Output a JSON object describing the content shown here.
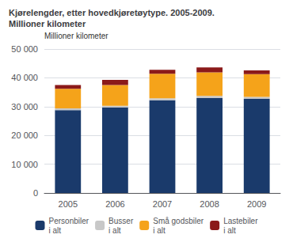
{
  "chart_data": {
    "type": "bar",
    "stacked": true,
    "title": "Kjørelengder, etter hovedkjøretøytype. 2005-2009.\nMillioner kilometer",
    "ylabel": "Millioner kilometer",
    "categories": [
      "2005",
      "2006",
      "2007",
      "2008",
      "2009"
    ],
    "series": [
      {
        "name": "Personbiler\ni alt",
        "color": "#1a3a6b",
        "values": [
          28800,
          29700,
          32200,
          33000,
          32700
        ]
      },
      {
        "name": "Busser\ni alt",
        "color": "#c8c8c8",
        "values": [
          600,
          600,
          700,
          700,
          650
        ]
      },
      {
        "name": "Små godsbiler\ni alt",
        "color": "#f5a31a",
        "values": [
          6800,
          7200,
          8500,
          8200,
          7900
        ]
      },
      {
        "name": "Lastebiler\ni alt",
        "color": "#8b1a1a",
        "values": [
          1300,
          1800,
          1400,
          1700,
          1300
        ]
      }
    ],
    "ylim": [
      0,
      50000
    ],
    "yticks": [
      0,
      {
        "value": 10000,
        "label": "10 000"
      },
      {
        "value": 20000,
        "label": "20 000"
      },
      {
        "value": 30000,
        "label": "30 000"
      },
      {
        "value": 40000,
        "label": "40 000"
      },
      {
        "value": 50000,
        "label": "50 000"
      }
    ],
    "grid": true,
    "legend": "bottom"
  }
}
